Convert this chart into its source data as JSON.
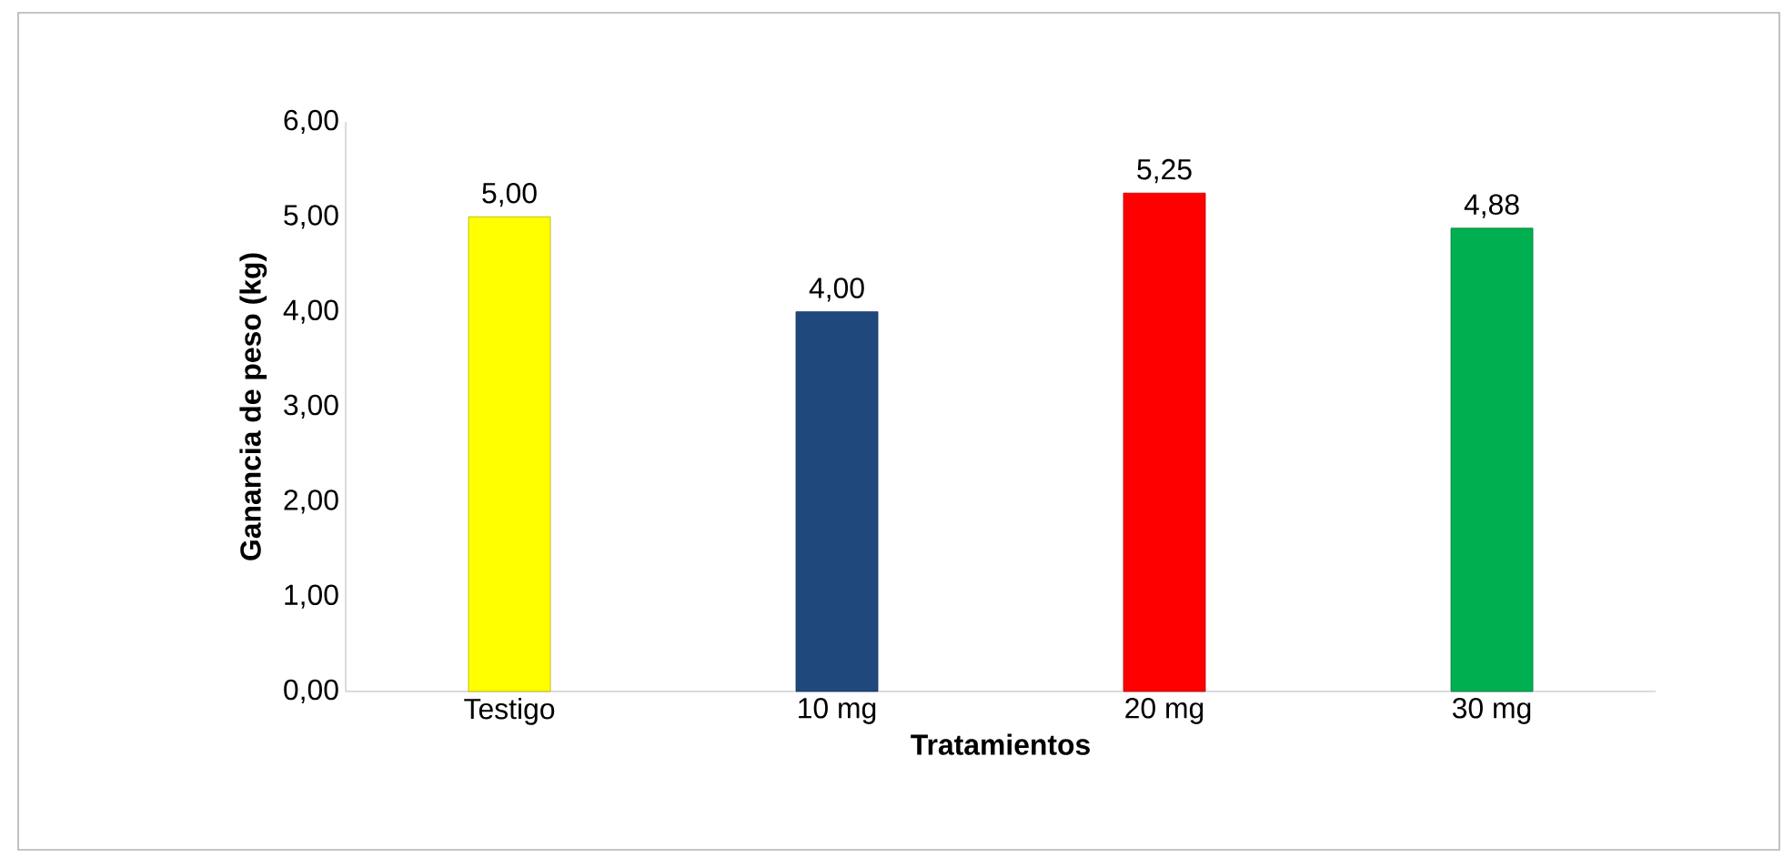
{
  "chart_data": {
    "type": "bar",
    "xlabel": "Tratamientos",
    "ylabel": "Ganancia de peso (kg)",
    "categories": [
      "Testigo",
      "10 mg",
      "20 mg",
      "30 mg"
    ],
    "values": [
      5.0,
      4.0,
      5.25,
      4.88
    ],
    "value_labels": [
      "5,00",
      "4,00",
      "5,25",
      "4,88"
    ],
    "colors": [
      "#ffff00",
      "#1f497d",
      "#ff0000",
      "#00b050"
    ],
    "ylim": [
      0,
      6
    ],
    "yticks": [
      {
        "value": 0,
        "label": "0,00"
      },
      {
        "value": 1,
        "label": "1,00"
      },
      {
        "value": 2,
        "label": "2,00"
      },
      {
        "value": 3,
        "label": "3,00"
      },
      {
        "value": 4,
        "label": "4,00"
      },
      {
        "value": 5,
        "label": "5,00"
      },
      {
        "value": 6,
        "label": "6,00"
      }
    ],
    "grid": false
  }
}
